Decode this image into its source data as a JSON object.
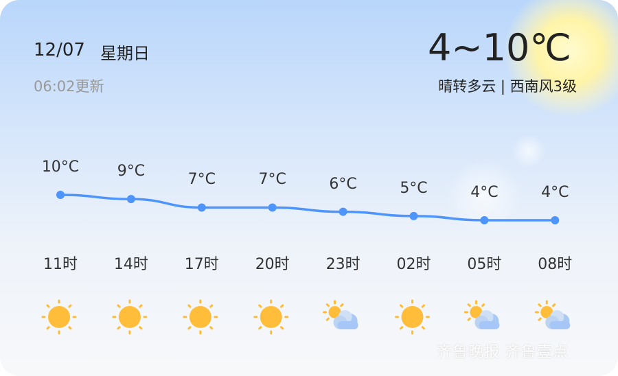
{
  "header": {
    "date": "12/07",
    "weekday": "星期日",
    "updated": "06:02更新",
    "temp_range": "4~10℃",
    "description": "晴转多云 | 西南风3级"
  },
  "forecast": [
    {
      "time": "11时",
      "temp": 10,
      "temp_label": "10°C",
      "icon": "sunny"
    },
    {
      "time": "14时",
      "temp": 9,
      "temp_label": "9°C",
      "icon": "sunny"
    },
    {
      "time": "17时",
      "temp": 7,
      "temp_label": "7°C",
      "icon": "sunny"
    },
    {
      "time": "20时",
      "temp": 7,
      "temp_label": "7°C",
      "icon": "sunny"
    },
    {
      "time": "23时",
      "temp": 6,
      "temp_label": "6°C",
      "icon": "partly-cloudy"
    },
    {
      "time": "02时",
      "temp": 5,
      "temp_label": "5°C",
      "icon": "sunny"
    },
    {
      "time": "05时",
      "temp": 4,
      "temp_label": "4°C",
      "icon": "partly-cloudy"
    },
    {
      "time": "08时",
      "temp": 4,
      "temp_label": "4°C",
      "icon": "partly-cloudy"
    }
  ],
  "colors": {
    "line": "#4d94fb",
    "sun": "#ffbb33"
  },
  "watermark": "齐鲁晚报 齐鲁壹点"
}
